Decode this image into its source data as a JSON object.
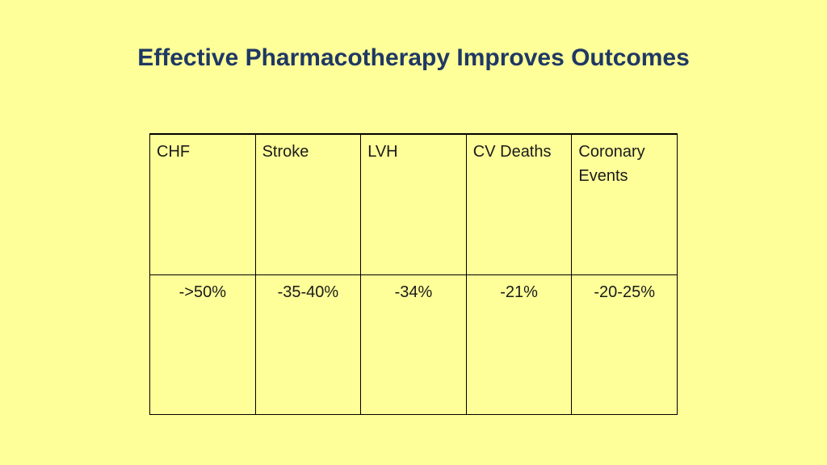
{
  "colors": {
    "background": "#ffff99",
    "title": "#1f3864",
    "text": "#1a1a1a",
    "border": "#000000"
  },
  "slide": {
    "title": "Effective Pharmacotherapy Improves Outcomes"
  },
  "table": {
    "headers": [
      "CHF",
      "Stroke",
      "LVH",
      "CV Deaths",
      "Coronary Events"
    ],
    "values": [
      "->50%",
      "-35-40%",
      "-34%",
      "-21%",
      "-20-25%"
    ]
  }
}
